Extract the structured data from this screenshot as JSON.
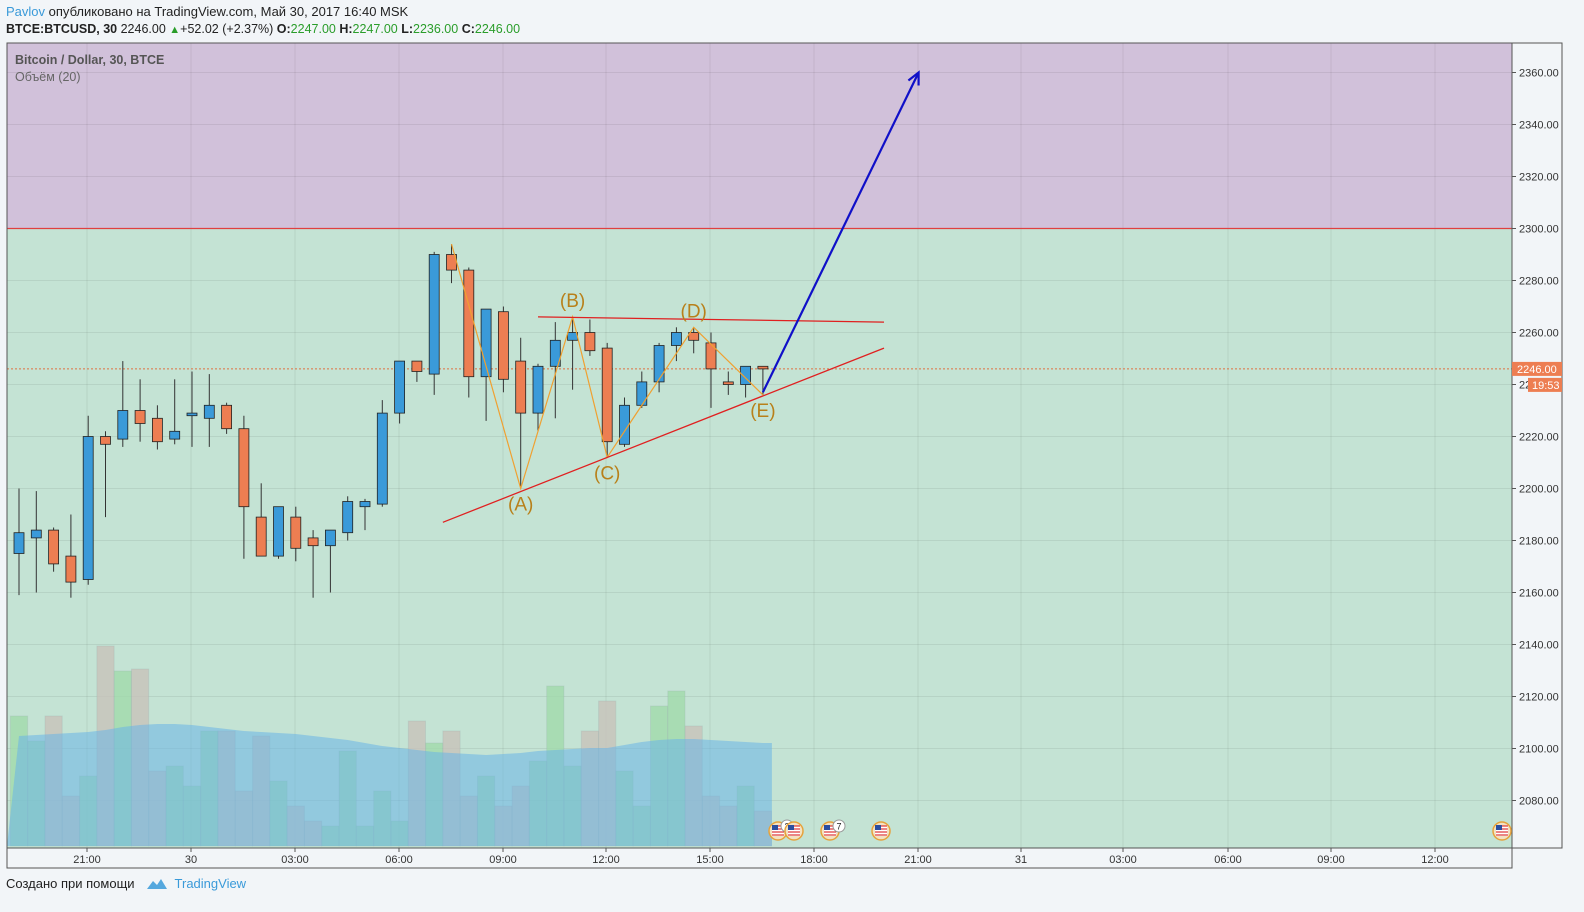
{
  "header": {
    "author": "Pavlov",
    "published": "опубликовано на TradingView.com, Май 30, 2017 16:40 MSK",
    "symbol": "BTCE:BTCUSD, 30",
    "price": "2246.00",
    "change": "+52.02 (+2.37%)",
    "o_label": "O:",
    "o": "2247.00",
    "h_label": "H:",
    "h": "2247.00",
    "l_label": "L:",
    "l": "2236.00",
    "c_label": "C:",
    "c": "2246.00"
  },
  "legend": {
    "title": "Bitcoin / Dollar, 30, BTCE",
    "volume": "Объём (20)"
  },
  "price_tags": {
    "last": "2246.00",
    "timer": "19:53"
  },
  "event_badges": [
    "3",
    "7"
  ],
  "footer": {
    "created": "Создано при помощи",
    "brand": "TradingView"
  },
  "colors": {
    "up": "#3a9ad9",
    "down": "#ed7e52",
    "target_zone": "#d1c1da",
    "chart_bg": "#c4e3d4",
    "trend_lines": "#e02020",
    "wave_lines": "#f0a030",
    "arrow": "#1010c8"
  },
  "chart_data": {
    "type": "candlestick",
    "title": "Bitcoin / Dollar, 30, BTCE",
    "y_ticks": [
      2080,
      2100,
      2120,
      2140,
      2160,
      2180,
      2200,
      2220,
      2240,
      2260,
      2280,
      2300,
      2320,
      2340,
      2360
    ],
    "x_ticks": [
      "21:00",
      "30",
      "03:00",
      "06:00",
      "09:00",
      "12:00",
      "15:00",
      "18:00",
      "21:00",
      "31",
      "03:00",
      "06:00",
      "09:00",
      "12:00"
    ],
    "last_price": 2246.0,
    "target_zone": [
      2300,
      2372
    ],
    "candles": [
      {
        "o": 2175,
        "h": 2200,
        "l": 2159,
        "c": 2183
      },
      {
        "o": 2181,
        "h": 2199,
        "l": 2160,
        "c": 2184
      },
      {
        "o": 2184,
        "h": 2185,
        "l": 2168,
        "c": 2171
      },
      {
        "o": 2174,
        "h": 2190,
        "l": 2158,
        "c": 2164
      },
      {
        "o": 2165,
        "h": 2228,
        "l": 2163,
        "c": 2220
      },
      {
        "o": 2220,
        "h": 2222,
        "l": 2189,
        "c": 2217
      },
      {
        "o": 2219,
        "h": 2249,
        "l": 2216,
        "c": 2230
      },
      {
        "o": 2230,
        "h": 2242,
        "l": 2218,
        "c": 2225
      },
      {
        "o": 2227,
        "h": 2232,
        "l": 2215,
        "c": 2218
      },
      {
        "o": 2219,
        "h": 2242,
        "l": 2217,
        "c": 2222
      },
      {
        "o": 2228,
        "h": 2245,
        "l": 2216,
        "c": 2229
      },
      {
        "o": 2227,
        "h": 2244,
        "l": 2216,
        "c": 2232
      },
      {
        "o": 2232,
        "h": 2233,
        "l": 2221,
        "c": 2223
      },
      {
        "o": 2223,
        "h": 2228,
        "l": 2173,
        "c": 2193
      },
      {
        "o": 2189,
        "h": 2202,
        "l": 2174,
        "c": 2174
      },
      {
        "o": 2174,
        "h": 2193,
        "l": 2173,
        "c": 2193
      },
      {
        "o": 2189,
        "h": 2193,
        "l": 2172,
        "c": 2177
      },
      {
        "o": 2181,
        "h": 2184,
        "l": 2158,
        "c": 2178
      },
      {
        "o": 2178,
        "h": 2183,
        "l": 2160,
        "c": 2184
      },
      {
        "o": 2183,
        "h": 2197,
        "l": 2180,
        "c": 2195
      },
      {
        "o": 2193,
        "h": 2196,
        "l": 2184,
        "c": 2195
      },
      {
        "o": 2194,
        "h": 2234,
        "l": 2193,
        "c": 2229
      },
      {
        "o": 2229,
        "h": 2249,
        "l": 2225,
        "c": 2249
      },
      {
        "o": 2249,
        "h": 2249,
        "l": 2241,
        "c": 2245
      },
      {
        "o": 2244,
        "h": 2291,
        "l": 2236,
        "c": 2290
      },
      {
        "o": 2290,
        "h": 2294,
        "l": 2279,
        "c": 2284
      },
      {
        "o": 2284,
        "h": 2285,
        "l": 2235,
        "c": 2243
      },
      {
        "o": 2243,
        "h": 2268,
        "l": 2226,
        "c": 2269
      },
      {
        "o": 2268,
        "h": 2270,
        "l": 2237,
        "c": 2242
      },
      {
        "o": 2249,
        "h": 2258,
        "l": 2200,
        "c": 2229
      },
      {
        "o": 2229,
        "h": 2248,
        "l": 2222,
        "c": 2247
      },
      {
        "o": 2247,
        "h": 2264,
        "l": 2227,
        "c": 2257
      },
      {
        "o": 2257,
        "h": 2266,
        "l": 2238,
        "c": 2260
      },
      {
        "o": 2260,
        "h": 2265,
        "l": 2251,
        "c": 2253
      },
      {
        "o": 2254,
        "h": 2256,
        "l": 2212,
        "c": 2218
      },
      {
        "o": 2217,
        "h": 2235,
        "l": 2216,
        "c": 2232
      },
      {
        "o": 2232,
        "h": 2245,
        "l": 2231,
        "c": 2241
      },
      {
        "o": 2241,
        "h": 2256,
        "l": 2237,
        "c": 2255
      },
      {
        "o": 2255,
        "h": 2262,
        "l": 2249,
        "c": 2260
      },
      {
        "o": 2260,
        "h": 2262,
        "l": 2252,
        "c": 2257
      },
      {
        "o": 2256,
        "h": 2260,
        "l": 2231,
        "c": 2246
      },
      {
        "o": 2241,
        "h": 2245,
        "l": 2236,
        "c": 2240
      },
      {
        "o": 2240,
        "h": 2247,
        "l": 2235,
        "c": 2247
      },
      {
        "o": 2247,
        "h": 2247,
        "l": 2236,
        "c": 2246
      }
    ],
    "volume_ylim": [
      0,
      200
    ],
    "volume": [
      130,
      105,
      130,
      50,
      70,
      200,
      175,
      177,
      75,
      80,
      60,
      115,
      115,
      55,
      110,
      65,
      40,
      25,
      20,
      95,
      20,
      55,
      25,
      125,
      103,
      115,
      50,
      70,
      40,
      60,
      85,
      160,
      80,
      115,
      145,
      75,
      40,
      140,
      155,
      120,
      50,
      40,
      60,
      35
    ],
    "volume_ma": [
      110,
      111,
      112,
      113,
      114,
      116,
      119,
      121,
      122,
      122,
      121,
      119,
      117,
      115,
      114,
      113,
      112,
      110,
      108,
      106,
      103,
      100,
      98,
      96,
      94,
      93,
      92,
      91,
      92,
      93,
      95,
      96,
      97,
      98,
      98,
      101,
      104,
      106,
      107,
      107,
      106,
      105,
      104,
      103
    ],
    "annotations": {
      "waves": [
        {
          "label": "(A)",
          "t": 29,
          "price": 2200
        },
        {
          "label": "(B)",
          "t": 32,
          "price": 2266
        },
        {
          "label": "(C)",
          "t": 34,
          "price": 2212
        },
        {
          "label": "(D)",
          "t": 39,
          "price": 2262
        },
        {
          "label": "(E)",
          "t": 43,
          "price": 2236
        }
      ],
      "wave_path": [
        [
          25,
          2294
        ],
        [
          29,
          2200
        ],
        [
          32,
          2266
        ],
        [
          34,
          2212
        ],
        [
          39,
          2262
        ],
        [
          43,
          2236
        ]
      ],
      "resistance_line": [
        [
          30,
          2266
        ],
        [
          50,
          2264
        ]
      ],
      "support_line": [
        [
          24.5,
          2187
        ],
        [
          50,
          2254
        ]
      ],
      "projection_arrow": [
        [
          43,
          2237
        ],
        [
          52,
          2360
        ]
      ]
    }
  }
}
